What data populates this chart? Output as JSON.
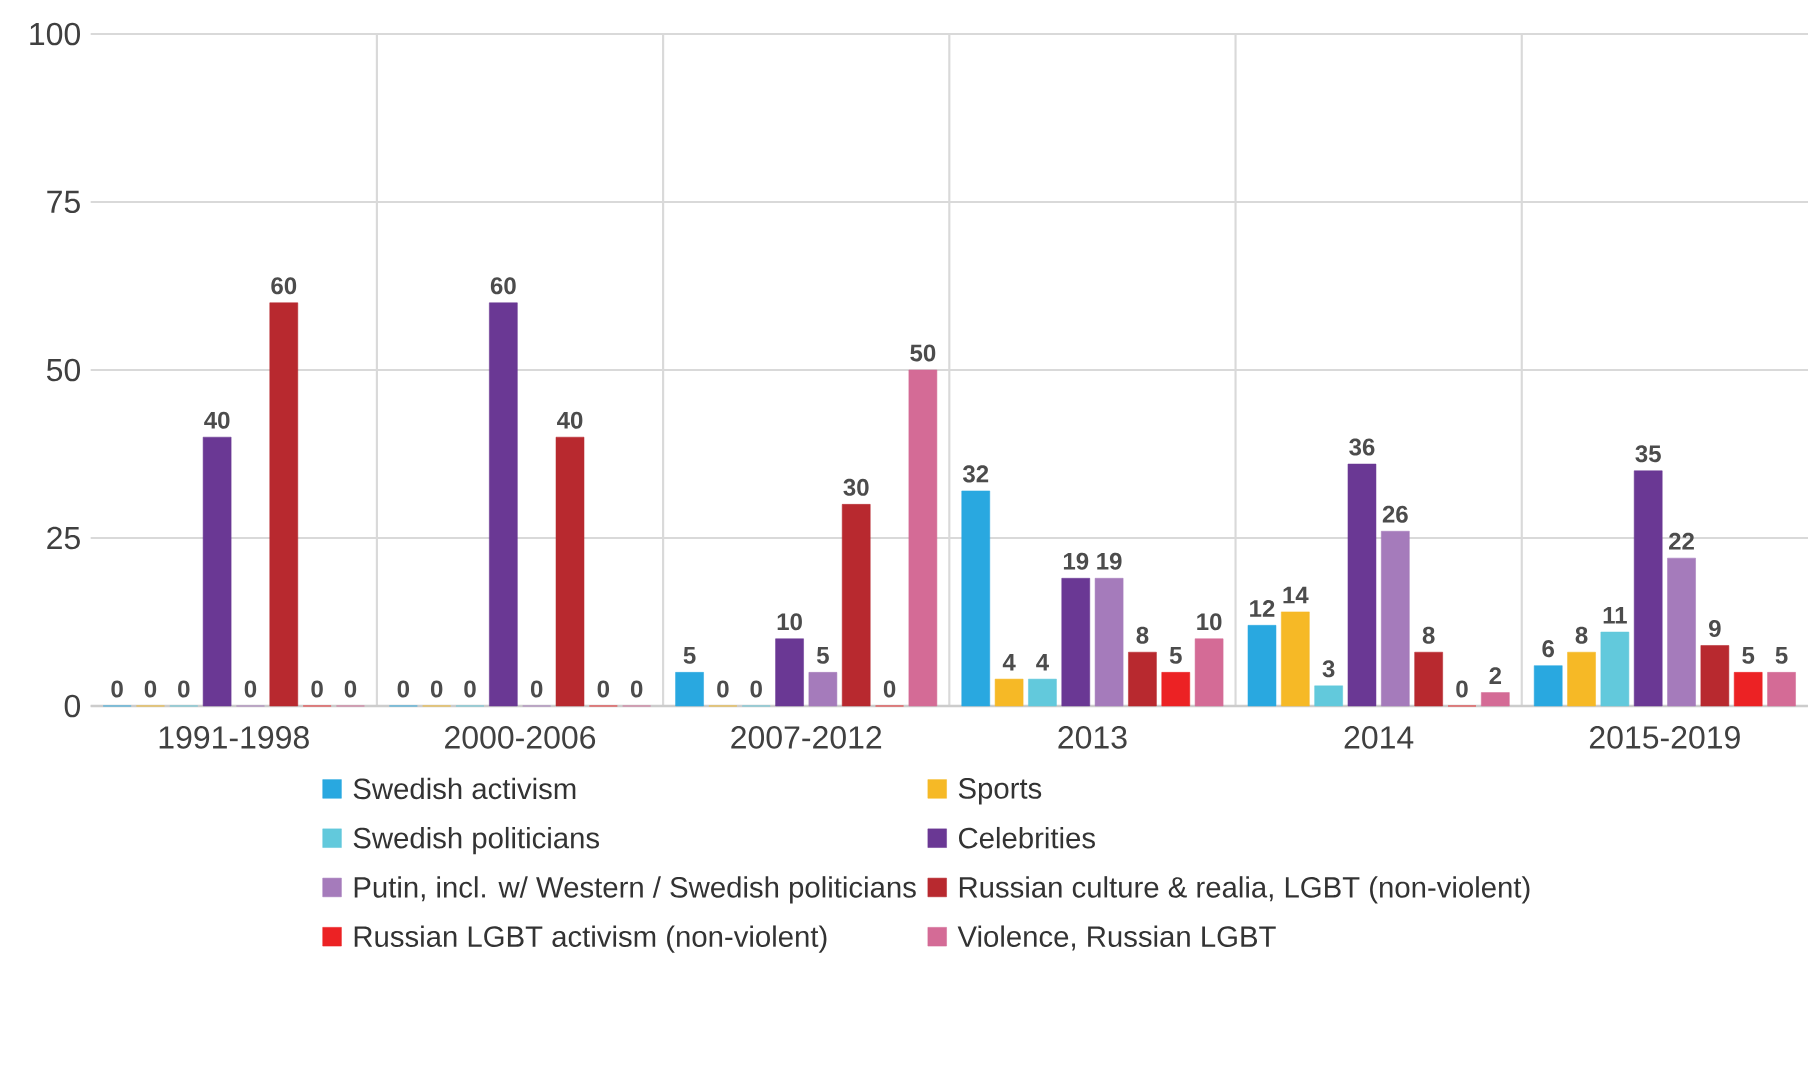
{
  "chart_data": {
    "type": "bar",
    "categories": [
      "1991-1998",
      "2000-2006",
      "2007-2012",
      "2013",
      "2014",
      "2015-2019"
    ],
    "ylim": [
      0,
      100
    ],
    "yticks": [
      0,
      25,
      50,
      75,
      100
    ],
    "grid": true,
    "legend": "bottom",
    "data_labels": true,
    "series": [
      {
        "name": "Swedish activism",
        "color": "#29a8e0",
        "values": [
          0,
          0,
          5,
          32,
          12,
          6
        ]
      },
      {
        "name": "Sports",
        "color": "#f6b926",
        "values": [
          0,
          0,
          0,
          4,
          14,
          8
        ]
      },
      {
        "name": "Swedish politicians",
        "color": "#62c9dc",
        "values": [
          0,
          0,
          0,
          4,
          3,
          11
        ]
      },
      {
        "name": "Celebrities",
        "color": "#6a3894",
        "values": [
          40,
          60,
          10,
          19,
          36,
          35
        ]
      },
      {
        "name": "Putin, incl. w/ Western / Swedish politicians",
        "color": "#a57bbb",
        "values": [
          0,
          0,
          5,
          19,
          26,
          22
        ]
      },
      {
        "name": "Russian culture & realia, LGBT (non-violent)",
        "color": "#b8292f",
        "values": [
          60,
          40,
          30,
          8,
          8,
          9
        ]
      },
      {
        "name": "Russian LGBT activism (non-violent)",
        "color": "#ec2224",
        "values": [
          0,
          0,
          0,
          5,
          0,
          5
        ]
      },
      {
        "name": "Violence, Russian LGBT",
        "color": "#d46b96",
        "values": [
          0,
          0,
          50,
          10,
          2,
          5
        ]
      }
    ]
  }
}
